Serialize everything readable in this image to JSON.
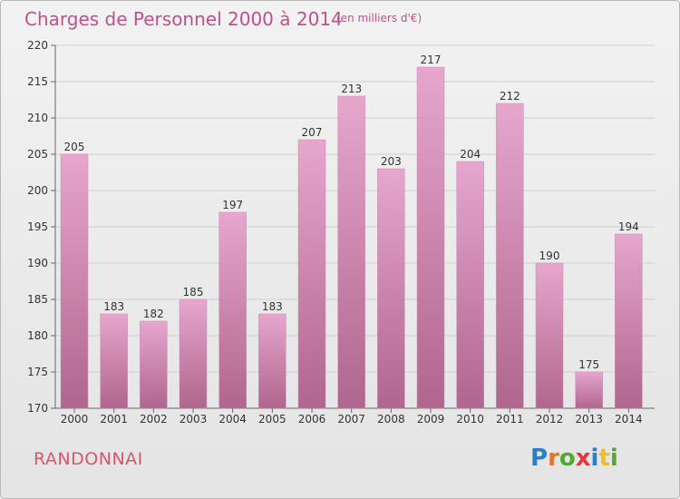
{
  "title": "Charges de Personnel 2000 à 2014",
  "subtitle": "(en milliers d'€)",
  "commune": "RANDONNAI",
  "logo": {
    "letters": [
      "P",
      "r",
      "o",
      "x",
      "i",
      "t",
      "i"
    ],
    "colors": [
      "#2a7fc9",
      "#e8732a",
      "#52a832",
      "#e23a3a",
      "#2a7fc9",
      "#e8c02a",
      "#52a832"
    ]
  },
  "colors": {
    "title": "#c0508a",
    "commune": "#d8566d",
    "bar_top": "#e6a6ce",
    "bar_bottom": "#b0668e",
    "grid": "#cfcfcf",
    "axis_text": "#333333"
  },
  "chart_data": {
    "type": "bar",
    "categories": [
      "2000",
      "2001",
      "2002",
      "2003",
      "2004",
      "2005",
      "2006",
      "2007",
      "2008",
      "2009",
      "2010",
      "2011",
      "2012",
      "2013",
      "2014"
    ],
    "values": [
      205,
      183,
      182,
      185,
      197,
      183,
      207,
      213,
      203,
      217,
      204,
      212,
      190,
      175,
      194
    ],
    "title": "Charges de Personnel 2000 à 2014",
    "xlabel": "",
    "ylabel": "",
    "ylim": [
      170,
      220
    ],
    "yticks": [
      170,
      175,
      180,
      185,
      190,
      195,
      200,
      205,
      210,
      215,
      220
    ],
    "grid": true,
    "data_labels": true
  }
}
